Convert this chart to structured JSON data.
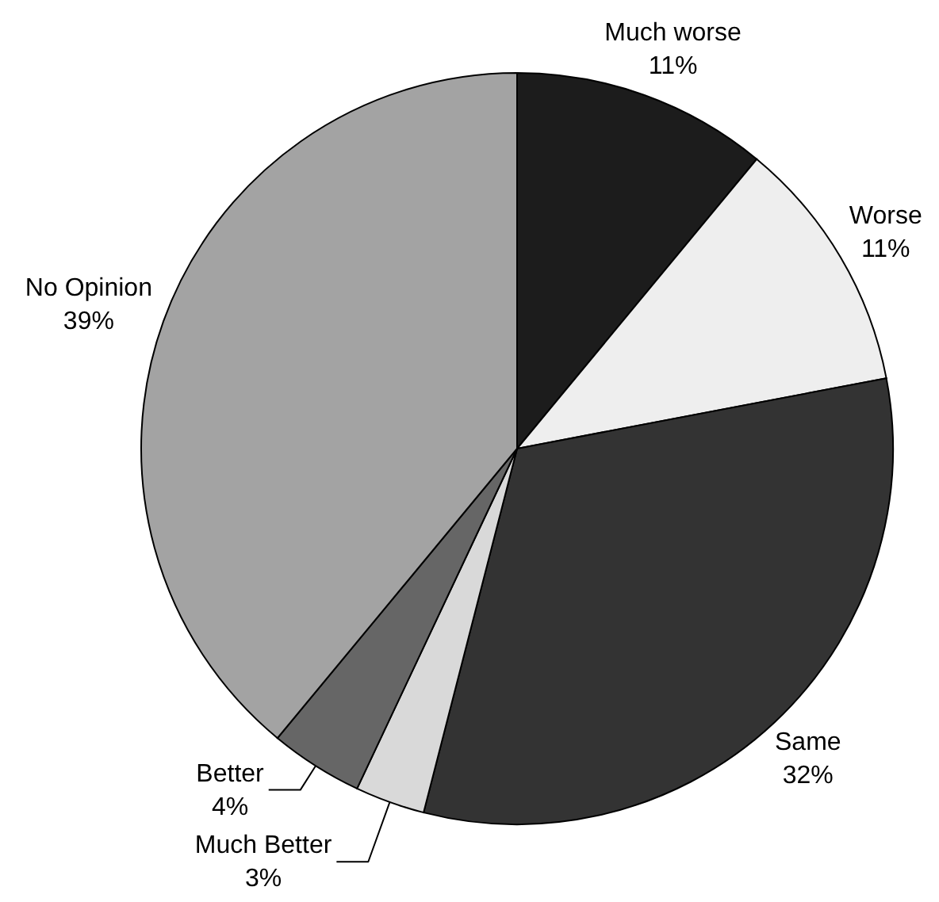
{
  "chart_data": {
    "type": "pie",
    "categories": [
      "Much worse",
      "Worse",
      "Same",
      "Much Better",
      "Better",
      "No Opinion"
    ],
    "values": [
      11,
      11,
      32,
      3,
      4,
      39
    ],
    "colors": [
      "#1c1c1c",
      "#eeeeee",
      "#333333",
      "#d9d9d9",
      "#666666",
      "#a3a3a3"
    ],
    "value_labels": [
      "11%",
      "11%",
      "32%",
      "3%",
      "4%",
      "39%"
    ]
  }
}
